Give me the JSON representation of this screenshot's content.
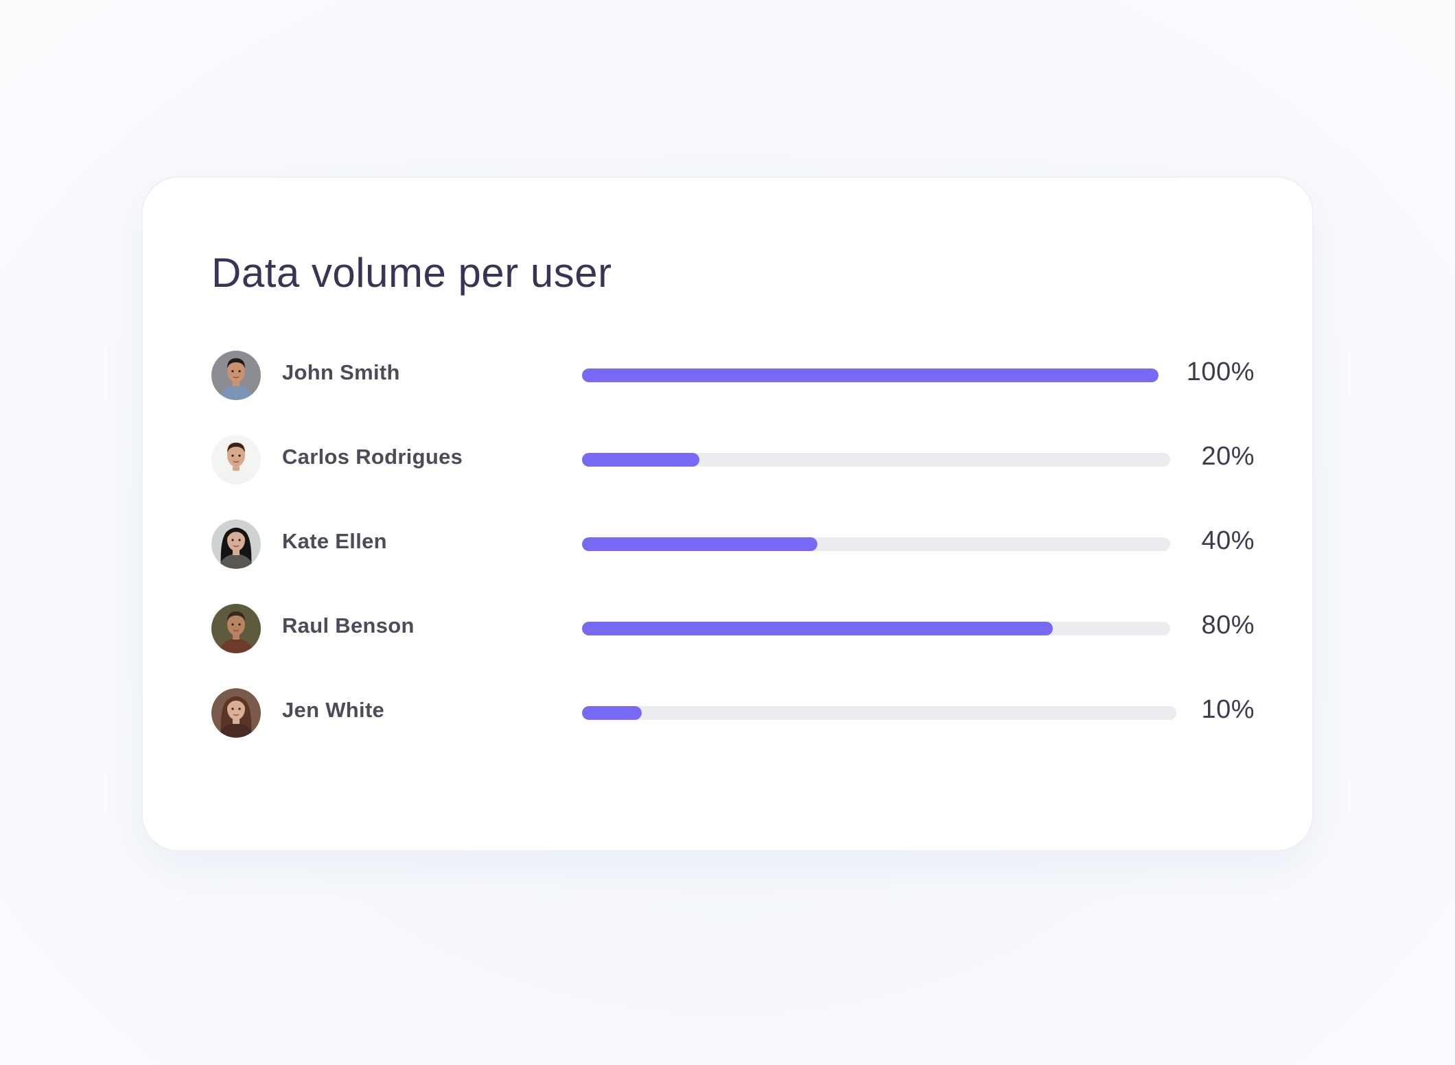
{
  "chart_data": {
    "type": "bar",
    "orientation": "horizontal",
    "title": "Data volume per user",
    "categories": [
      "John Smith",
      "Carlos Rodrigues",
      "Kate Ellen",
      "Raul Benson",
      "Jen White"
    ],
    "values": [
      100,
      20,
      40,
      80,
      10
    ],
    "value_labels": [
      "100%",
      "20%",
      "40%",
      "80%",
      "10%"
    ],
    "xlim": [
      0,
      100
    ],
    "grid": false,
    "legend": "none"
  },
  "colors": {
    "bar_fill": "#7769f4",
    "track": "#ebecef",
    "title": "#3b3356",
    "name": "#4c4b57"
  },
  "users": [
    {
      "name": "John Smith",
      "avatar_icon": "man-dark-hair-blue-shirt-avatar-icon",
      "skin": "#c9936f",
      "hair": "#1f1b1a",
      "shirt": "#7a95b6",
      "bg": "#8c8d92"
    },
    {
      "name": "Carlos Rodrigues",
      "avatar_icon": "man-white-shirt-avatar-icon",
      "skin": "#d9a889",
      "hair": "#3a2419",
      "shirt": "#f2f2f2",
      "bg": "#f4f4f2"
    },
    {
      "name": "Kate Ellen",
      "avatar_icon": "woman-dark-hair-avatar-icon",
      "skin": "#d6ad97",
      "hair": "#141414",
      "shirt": "#5a5753",
      "bg": "#cfd3d0"
    },
    {
      "name": "Raul Benson",
      "avatar_icon": "man-plaid-shirt-avatar-icon",
      "skin": "#b98461",
      "hair": "#3b2a1c",
      "shirt": "#6e3a2a",
      "bg": "#5d5a3e"
    },
    {
      "name": "Jen White",
      "avatar_icon": "woman-brown-hair-avatar-icon",
      "skin": "#dbae96",
      "hair": "#5a3526",
      "shirt": "#4a2b22",
      "bg": "#7a5a4a"
    }
  ]
}
